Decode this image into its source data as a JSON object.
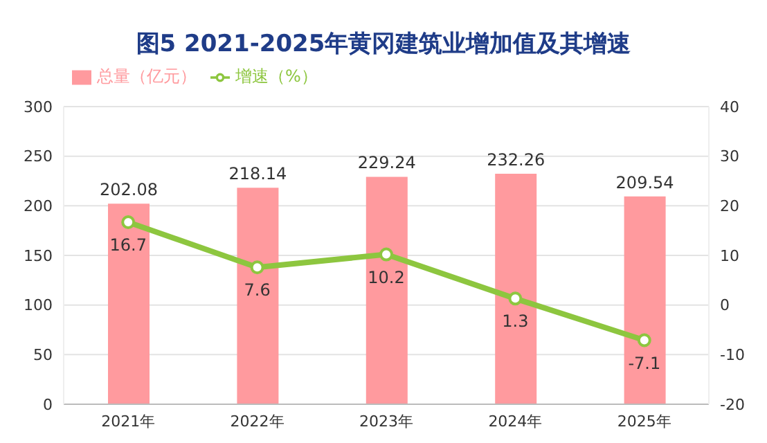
{
  "chart_data": {
    "type": "bar",
    "title": "图5 2021-2025年黄冈建筑业增加值及其增速",
    "categories": [
      "2021年",
      "2022年",
      "2023年",
      "2024年",
      "2025年"
    ],
    "series": [
      {
        "name": "总量（亿元）",
        "color": "#ff9a9e",
        "values": [
          202.08,
          218.14,
          229.24,
          232.26,
          209.54
        ]
      },
      {
        "name": "增速（%）",
        "type": "line",
        "axis": "y2",
        "color": "#8dc63f",
        "values": [
          16.7,
          7.6,
          10.2,
          1.3,
          -7.1
        ]
      }
    ],
    "ylim": [
      0,
      300
    ],
    "yticks": [
      0,
      50,
      100,
      150,
      200,
      250,
      300
    ],
    "y2lim": [
      -20,
      40
    ],
    "y2ticks": [
      -20,
      -10,
      0,
      10,
      20,
      30,
      40
    ],
    "grid": "y",
    "legend": "top left",
    "marker": "circle",
    "data_labels": true
  }
}
